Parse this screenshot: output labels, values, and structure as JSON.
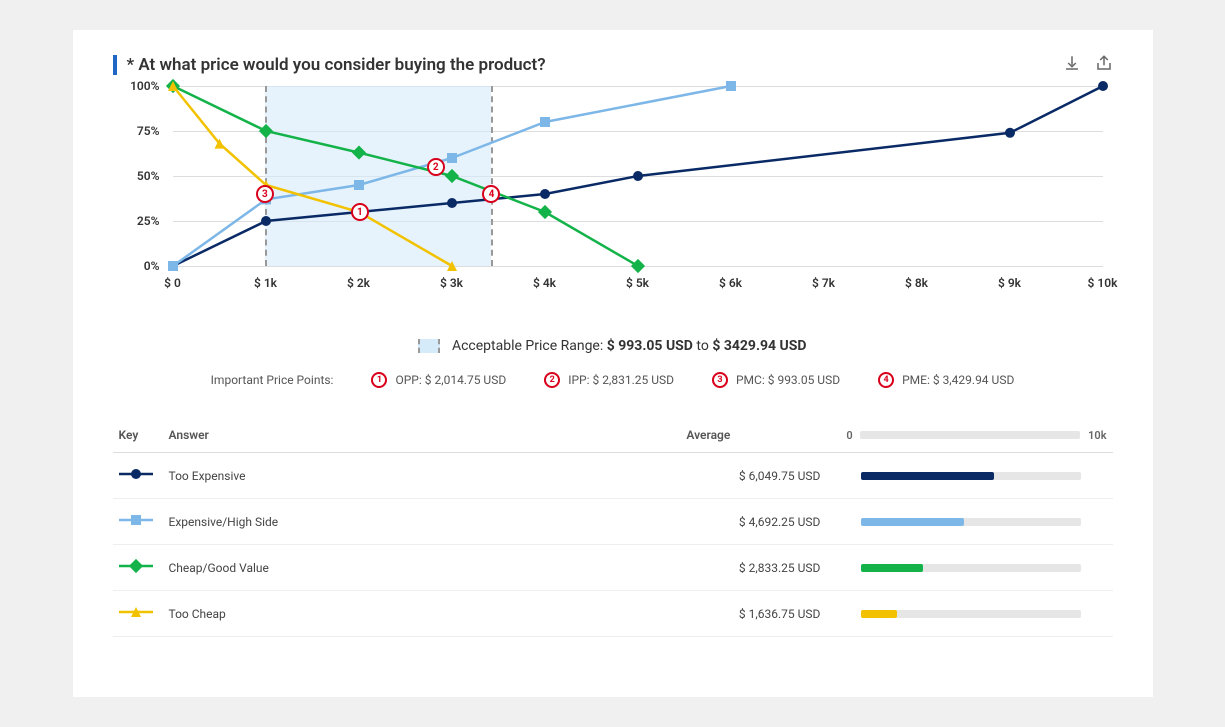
{
  "title": "* At what price would you consider buying the product?",
  "colors": {
    "accent": "#2066c4",
    "too_expensive": "#0a2a66",
    "expensive_high": "#7db7e8",
    "cheap_good": "#14b34a",
    "too_cheap": "#f2c200",
    "range_fill": "#d6ebfa",
    "range_edge": "#999999",
    "pp_marker": "#d9001b",
    "grid": "#dddddd",
    "bar_track": "#e6e6e6"
  },
  "chart": {
    "type": "line",
    "x_domain": [
      0,
      10000
    ],
    "y_domain": [
      0,
      100
    ],
    "x_ticks": [
      0,
      1000,
      2000,
      3000,
      4000,
      5000,
      6000,
      7000,
      8000,
      9000,
      10000
    ],
    "x_tick_labels": [
      "$ 0",
      "$ 1k",
      "$ 2k",
      "$ 3k",
      "$ 4k",
      "$ 5k",
      "$ 6k",
      "$ 7k",
      "$ 8k",
      "$ 9k",
      "$ 10k"
    ],
    "y_ticks": [
      0,
      25,
      50,
      75,
      100
    ],
    "y_tick_labels": [
      "0%",
      "25%",
      "50%",
      "75%",
      "100%"
    ],
    "acceptable_range": {
      "min": 993.05,
      "max": 3429.94
    },
    "series": [
      {
        "id": "too_expensive",
        "marker": "circle",
        "data": [
          [
            0,
            0
          ],
          [
            1000,
            25
          ],
          [
            2000,
            30
          ],
          [
            3000,
            35
          ],
          [
            4000,
            40
          ],
          [
            5000,
            50
          ],
          [
            9000,
            74
          ],
          [
            10000,
            100
          ]
        ]
      },
      {
        "id": "expensive_high",
        "marker": "square",
        "data": [
          [
            0,
            0
          ],
          [
            1000,
            37
          ],
          [
            2000,
            45
          ],
          [
            3000,
            60
          ],
          [
            4000,
            80
          ],
          [
            6000,
            100
          ]
        ]
      },
      {
        "id": "cheap_good",
        "marker": "diamond",
        "data": [
          [
            0,
            100
          ],
          [
            1000,
            75
          ],
          [
            2000,
            63
          ],
          [
            3000,
            50
          ],
          [
            4000,
            30
          ],
          [
            5000,
            0
          ]
        ]
      },
      {
        "id": "too_cheap",
        "marker": "triangle",
        "data": [
          [
            0,
            100
          ],
          [
            500,
            68
          ],
          [
            1000,
            45
          ],
          [
            2000,
            30
          ],
          [
            3000,
            0
          ]
        ]
      }
    ],
    "price_points": [
      {
        "n": 1,
        "x": 2014.75,
        "y": 30
      },
      {
        "n": 2,
        "x": 2831.25,
        "y": 55
      },
      {
        "n": 3,
        "x": 993.05,
        "y": 40
      },
      {
        "n": 4,
        "x": 3429.94,
        "y": 40
      }
    ]
  },
  "range_label": {
    "prefix": "Acceptable Price Range:",
    "min": "$ 993.05 USD",
    "join": "to",
    "max": "$ 3429.94 USD"
  },
  "price_points_label": "Important Price Points:",
  "price_points_list": [
    {
      "n": 1,
      "text": "OPP: $ 2,014.75 USD"
    },
    {
      "n": 2,
      "text": "IPP: $ 2,831.25 USD"
    },
    {
      "n": 3,
      "text": "PMC: $ 993.05 USD"
    },
    {
      "n": 4,
      "text": "PME: $ 3,429.94 USD"
    }
  ],
  "table": {
    "headers": {
      "key": "Key",
      "answer": "Answer",
      "average": "Average",
      "bar_min": "0",
      "bar_max": "10k"
    },
    "bar_domain": [
      0,
      10000
    ],
    "rows": [
      {
        "color_id": "too_expensive",
        "marker": "circle",
        "answer": "Too Expensive",
        "average_text": "$ 6,049.75 USD",
        "average_value": 6049.75
      },
      {
        "color_id": "expensive_high",
        "marker": "square",
        "answer": "Expensive/High Side",
        "average_text": "$ 4,692.25 USD",
        "average_value": 4692.25
      },
      {
        "color_id": "cheap_good",
        "marker": "diamond",
        "answer": "Cheap/Good Value",
        "average_text": "$ 2,833.25 USD",
        "average_value": 2833.25
      },
      {
        "color_id": "too_cheap",
        "marker": "triangle",
        "answer": "Too Cheap",
        "average_text": "$ 1,636.75 USD",
        "average_value": 1636.75
      }
    ]
  }
}
